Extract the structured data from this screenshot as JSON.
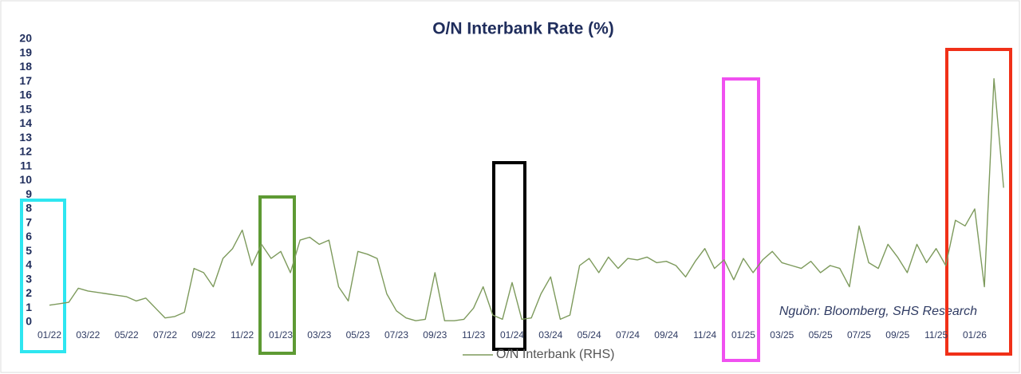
{
  "chart_data": {
    "type": "line",
    "title": "O/N Interbank Rate (%)",
    "categories": [
      "01/22",
      null,
      null,
      null,
      "03/22",
      null,
      null,
      null,
      "05/22",
      null,
      null,
      null,
      "07/22",
      null,
      null,
      null,
      "09/22",
      null,
      null,
      null,
      "11/22",
      null,
      null,
      null,
      "01/23",
      null,
      null,
      null,
      "03/23",
      null,
      null,
      null,
      "05/23",
      null,
      null,
      null,
      "07/23",
      null,
      null,
      null,
      "09/23",
      null,
      null,
      null,
      "11/23",
      null,
      null,
      null,
      "01/24",
      null,
      null,
      null,
      "03/24",
      null,
      null,
      null,
      "05/24",
      null,
      null,
      null,
      "07/24",
      null,
      null,
      null,
      "09/24",
      null,
      null,
      null,
      "11/24",
      null,
      null,
      null,
      "01/25",
      null,
      null,
      null,
      "03/25",
      null,
      null,
      null,
      "05/25",
      null,
      null,
      null,
      "07/25",
      null,
      null,
      null,
      "09/25",
      null,
      null,
      null,
      "11/25",
      null,
      null,
      null,
      "01/26",
      null,
      null,
      null
    ],
    "series": [
      {
        "name": "O/N Interbank (RHS)",
        "color": "#7d9a5c",
        "values": [
          1.2,
          1.3,
          1.4,
          2.4,
          2.2,
          2.1,
          2.0,
          1.9,
          1.8,
          1.5,
          1.7,
          1.0,
          0.3,
          0.4,
          0.7,
          3.8,
          3.5,
          2.5,
          4.5,
          5.2,
          6.5,
          4.0,
          5.5,
          4.5,
          5.0,
          3.5,
          5.8,
          6.0,
          5.5,
          5.8,
          2.5,
          1.5,
          5.0,
          4.8,
          4.5,
          2.0,
          0.8,
          0.3,
          0.1,
          0.2,
          3.5,
          0.1,
          0.1,
          0.2,
          1.0,
          2.5,
          0.5,
          0.2,
          2.8,
          0.2,
          0.3,
          2.0,
          3.2,
          0.2,
          0.5,
          4.0,
          4.5,
          3.5,
          4.6,
          3.8,
          4.5,
          4.4,
          4.6,
          4.2,
          4.3,
          4.0,
          3.2,
          4.3,
          5.2,
          3.8,
          4.4,
          3.0,
          4.5,
          3.5,
          4.4,
          5.0,
          4.2,
          4.0,
          3.8,
          4.3,
          3.5,
          4.0,
          3.8,
          2.5,
          6.8,
          4.2,
          3.8,
          5.5,
          4.6,
          3.5,
          5.5,
          4.2,
          5.2,
          4.0,
          7.2,
          6.8,
          8.0,
          2.5,
          17.2,
          9.5
        ]
      }
    ],
    "ylim": [
      0,
      20
    ],
    "yticks": [
      0,
      1,
      2,
      3,
      4,
      5,
      6,
      7,
      8,
      9,
      10,
      11,
      12,
      13,
      14,
      15,
      16,
      17,
      18,
      19,
      20
    ],
    "grid": false,
    "source": "Nguồn:  Bloomberg, SHS Research"
  }
}
